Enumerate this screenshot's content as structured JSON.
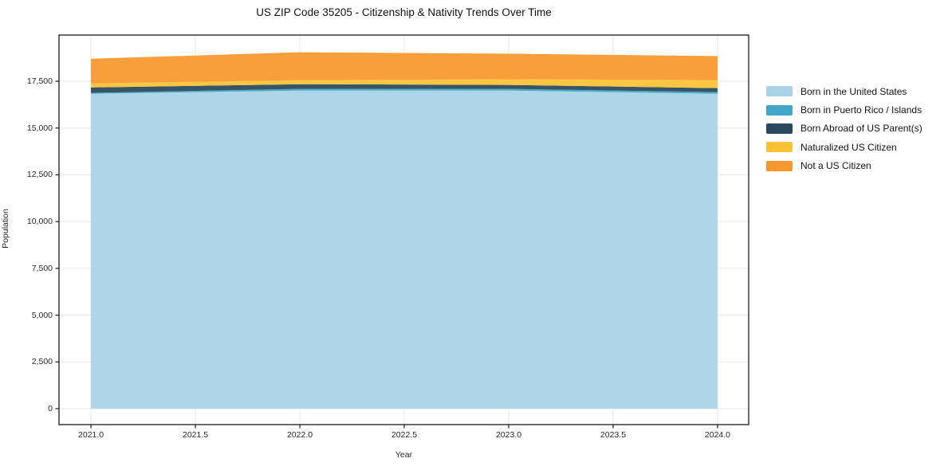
{
  "chart": {
    "title": "US ZIP Code 35205 - Citizenship & Nativity Trends Over Time",
    "xlabel": "Year",
    "ylabel": "Population"
  },
  "chart_data": {
    "type": "area",
    "stacked": true,
    "x": [
      2021,
      2022,
      2023,
      2024
    ],
    "series": [
      {
        "name": "Born in the United States",
        "color": "#a8d3e6",
        "values": [
          16830,
          17000,
          17000,
          16830
        ]
      },
      {
        "name": "Born in Puerto Rico / Islands",
        "color": "#42a6c6",
        "values": [
          50,
          90,
          90,
          90
        ]
      },
      {
        "name": "Born Abroad of US Parent(s)",
        "color": "#28485c",
        "values": [
          290,
          250,
          215,
          215
        ]
      },
      {
        "name": "Naturalized US Citizen",
        "color": "#fcc235",
        "values": [
          215,
          220,
          300,
          430
        ]
      },
      {
        "name": "Not a US Citizen",
        "color": "#f8982c",
        "values": [
          1320,
          1490,
          1370,
          1280
        ]
      }
    ],
    "x_tick_labels": [
      "2021.0",
      "2021.5",
      "2022.0",
      "2022.5",
      "2023.0",
      "2023.5",
      "2024.0"
    ],
    "x_tick_values": [
      2021,
      2021.5,
      2022,
      2022.5,
      2023,
      2023.5,
      2024
    ],
    "y_tick_labels": [
      "0",
      "2,500",
      "5,000",
      "7,500",
      "10,000",
      "12,500",
      "15,000",
      "17,500"
    ],
    "y_tick_values": [
      0,
      2500,
      5000,
      7500,
      10000,
      12500,
      15000,
      17500
    ],
    "xlim": [
      2020.847,
      2024.149
    ],
    "ylim": [
      -850,
      19970
    ],
    "grid": true,
    "legend_position": "right"
  },
  "colors": {
    "grid": "#e6e6e6",
    "axis": "#1a1a1a",
    "tick_text": "#262626",
    "plot_background": "#ffffff",
    "figure_background": "#ffffff"
  }
}
